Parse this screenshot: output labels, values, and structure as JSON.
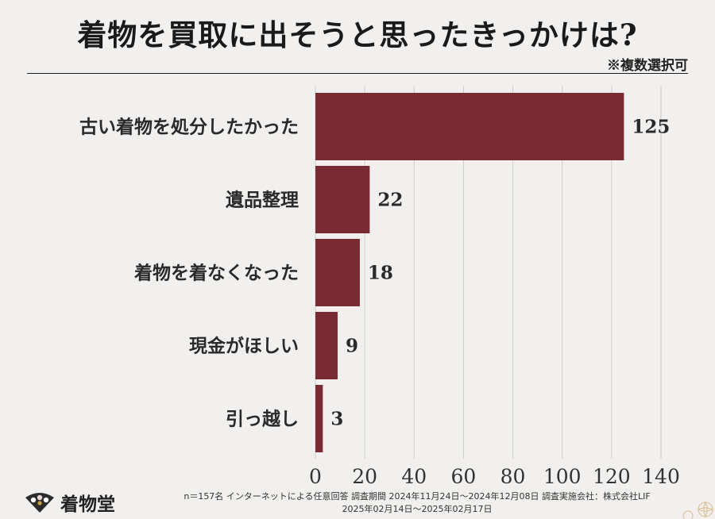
{
  "title": "着物を買取に出そうと思ったきっかけは?",
  "note": "※複数選択可",
  "chart_data": {
    "type": "bar",
    "orientation": "horizontal",
    "categories": [
      "古い着物を処分したかった",
      "遺品整理",
      "着物を着なくなった",
      "現金がほしい",
      "引っ越し"
    ],
    "values": [
      125,
      22,
      18,
      9,
      3
    ],
    "xticks": [
      0,
      20,
      40,
      60,
      80,
      100,
      120,
      140
    ],
    "xlim": [
      0,
      140
    ],
    "bar_color": "#7a2a33",
    "grid": true,
    "title": "着物を買取に出そうと思ったきっかけは?"
  },
  "footer": {
    "logo_text": "着物堂",
    "survey_line1": "n＝157名 インターネットによる任意回答 調査期間 2024年11月24日～2024年12月08日 調査実施会社：株式会社LIF",
    "survey_line2": "2025年02月14日～2025年02月17日"
  }
}
